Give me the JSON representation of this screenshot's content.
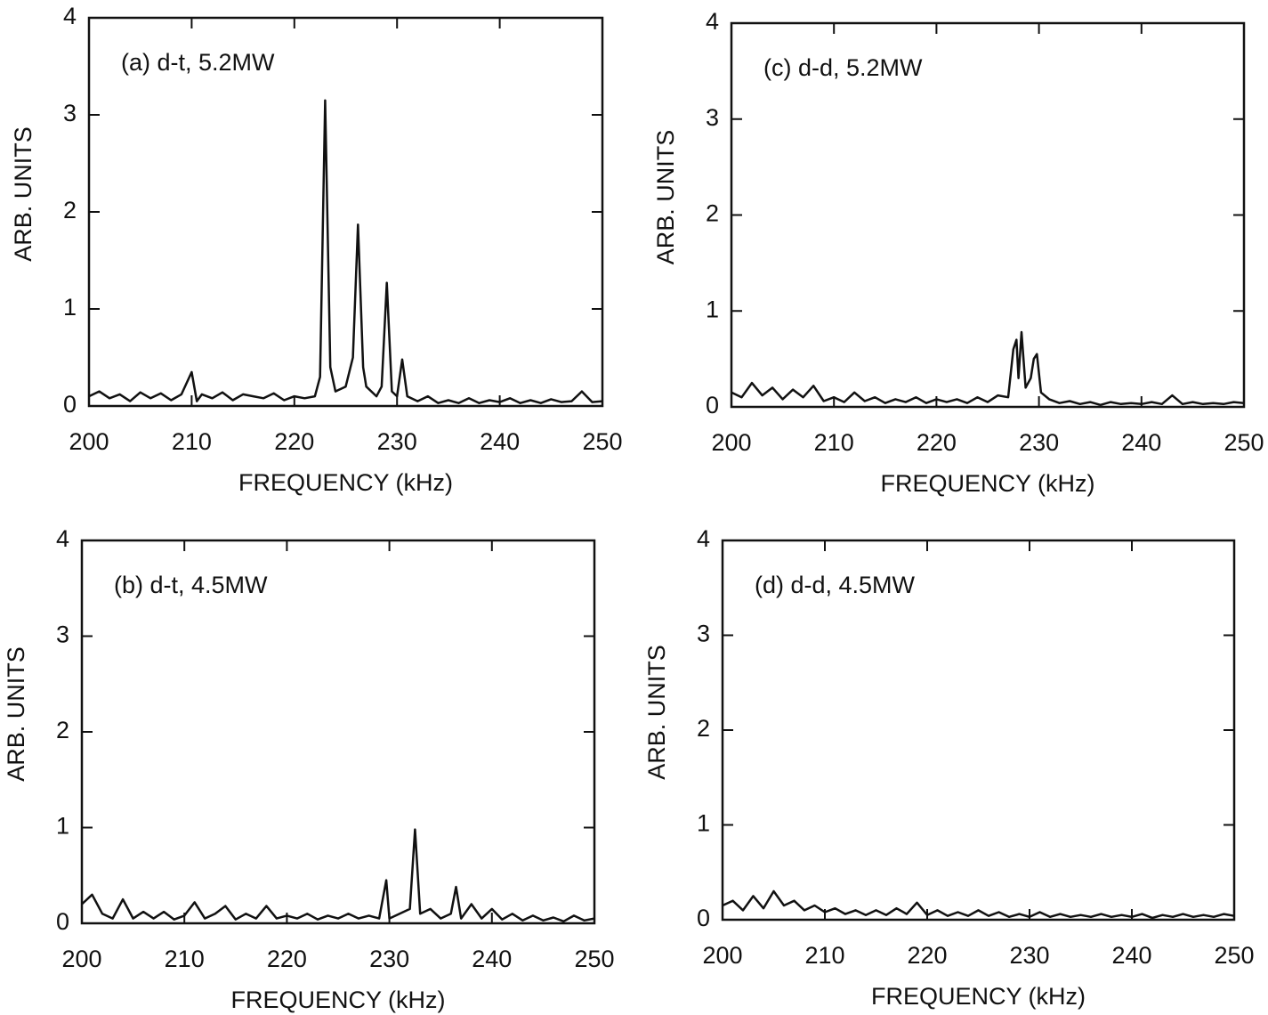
{
  "chart_data": [
    {
      "type": "line",
      "title": "(a) d-t, 5.2MW",
      "x_label": "FREQUENCY (kHz)",
      "y_label": "ARB. UNITS",
      "color": "#111111",
      "xlim": [
        200,
        250
      ],
      "ylim": [
        0,
        4
      ],
      "xticks": [
        200,
        210,
        220,
        230,
        240,
        250
      ],
      "yticks": [
        0,
        1,
        2,
        3,
        4
      ],
      "x": [
        200,
        201,
        202,
        203,
        204,
        205,
        206,
        207,
        208,
        209,
        210,
        210.5,
        211,
        212,
        213,
        214,
        215,
        216,
        217,
        218,
        219,
        220,
        221,
        222,
        222.5,
        223,
        223.5,
        224,
        225,
        225.7,
        226.2,
        226.7,
        227,
        228,
        228.5,
        229,
        229.5,
        230,
        230.5,
        231,
        232,
        233,
        234,
        235,
        236,
        237,
        238,
        239,
        240,
        241,
        242,
        243,
        244,
        245,
        246,
        247,
        248,
        249,
        250
      ],
      "values": [
        0.1,
        0.15,
        0.08,
        0.12,
        0.05,
        0.14,
        0.08,
        0.13,
        0.06,
        0.12,
        0.35,
        0.05,
        0.12,
        0.08,
        0.14,
        0.06,
        0.12,
        0.1,
        0.08,
        0.13,
        0.06,
        0.1,
        0.08,
        0.1,
        0.3,
        3.15,
        0.4,
        0.15,
        0.2,
        0.5,
        1.87,
        0.4,
        0.2,
        0.1,
        0.2,
        1.27,
        0.15,
        0.1,
        0.48,
        0.1,
        0.05,
        0.1,
        0.03,
        0.06,
        0.03,
        0.08,
        0.03,
        0.06,
        0.04,
        0.08,
        0.03,
        0.06,
        0.03,
        0.07,
        0.04,
        0.05,
        0.15,
        0.04,
        0.05
      ]
    },
    {
      "type": "line",
      "title": "(b) d-t, 4.5MW",
      "x_label": "FREQUENCY (kHz)",
      "y_label": "ARB. UNITS",
      "color": "#111111",
      "xlim": [
        200,
        250
      ],
      "ylim": [
        0,
        4
      ],
      "xticks": [
        200,
        210,
        220,
        230,
        240,
        250
      ],
      "yticks": [
        0,
        1,
        2,
        3,
        4
      ],
      "x": [
        200,
        201,
        202,
        203,
        204,
        205,
        206,
        207,
        208,
        209,
        210,
        211,
        212,
        213,
        214,
        215,
        216,
        217,
        218,
        219,
        220,
        221,
        222,
        223,
        224,
        225,
        226,
        227,
        228,
        229,
        229.7,
        230,
        231,
        232,
        232.5,
        233,
        234,
        235,
        236,
        236.5,
        237,
        238,
        239,
        240,
        241,
        242,
        243,
        244,
        245,
        246,
        247,
        248,
        249,
        250
      ],
      "values": [
        0.2,
        0.3,
        0.1,
        0.05,
        0.25,
        0.05,
        0.12,
        0.05,
        0.12,
        0.04,
        0.08,
        0.22,
        0.05,
        0.1,
        0.18,
        0.04,
        0.1,
        0.05,
        0.18,
        0.05,
        0.08,
        0.05,
        0.1,
        0.04,
        0.08,
        0.05,
        0.1,
        0.05,
        0.08,
        0.05,
        0.45,
        0.05,
        0.1,
        0.15,
        0.98,
        0.1,
        0.15,
        0.05,
        0.1,
        0.38,
        0.05,
        0.2,
        0.05,
        0.15,
        0.04,
        0.1,
        0.03,
        0.08,
        0.03,
        0.06,
        0.02,
        0.08,
        0.03,
        0.05
      ]
    },
    {
      "type": "line",
      "title": "(c) d-d, 5.2MW",
      "x_label": "FREQUENCY (kHz)",
      "y_label": "ARB. UNITS",
      "color": "#111111",
      "xlim": [
        200,
        250
      ],
      "ylim": [
        0,
        4
      ],
      "xticks": [
        200,
        210,
        220,
        230,
        240,
        250
      ],
      "yticks": [
        0,
        1,
        2,
        3,
        4
      ],
      "x": [
        200,
        201,
        202,
        203,
        204,
        205,
        206,
        207,
        208,
        209,
        210,
        211,
        212,
        213,
        214,
        215,
        216,
        217,
        218,
        219,
        220,
        221,
        222,
        223,
        224,
        225,
        226,
        227,
        227.5,
        227.8,
        228,
        228.3,
        228.7,
        229.2,
        229.5,
        229.8,
        230.2,
        231,
        232,
        233,
        234,
        235,
        236,
        237,
        238,
        239,
        240,
        241,
        242,
        243,
        244,
        245,
        246,
        247,
        248,
        249,
        250
      ],
      "values": [
        0.15,
        0.1,
        0.25,
        0.12,
        0.2,
        0.08,
        0.18,
        0.1,
        0.22,
        0.06,
        0.1,
        0.05,
        0.15,
        0.06,
        0.1,
        0.04,
        0.08,
        0.05,
        0.1,
        0.04,
        0.08,
        0.05,
        0.08,
        0.04,
        0.1,
        0.05,
        0.12,
        0.1,
        0.6,
        0.7,
        0.3,
        0.78,
        0.2,
        0.3,
        0.5,
        0.55,
        0.15,
        0.08,
        0.04,
        0.06,
        0.03,
        0.05,
        0.02,
        0.05,
        0.03,
        0.04,
        0.03,
        0.05,
        0.03,
        0.12,
        0.03,
        0.05,
        0.03,
        0.04,
        0.03,
        0.05,
        0.04
      ]
    },
    {
      "type": "line",
      "title": "(d) d-d, 4.5MW",
      "x_label": "FREQUENCY (kHz)",
      "y_label": "ARB. UNITS",
      "color": "#111111",
      "xlim": [
        200,
        250
      ],
      "ylim": [
        0,
        4
      ],
      "xticks": [
        200,
        210,
        220,
        230,
        240,
        250
      ],
      "yticks": [
        0,
        1,
        2,
        3,
        4
      ],
      "x": [
        200,
        201,
        202,
        203,
        204,
        205,
        206,
        207,
        208,
        209,
        210,
        211,
        212,
        213,
        214,
        215,
        216,
        217,
        218,
        219,
        220,
        221,
        222,
        223,
        224,
        225,
        226,
        227,
        228,
        229,
        230,
        231,
        232,
        233,
        234,
        235,
        236,
        237,
        238,
        239,
        240,
        241,
        242,
        243,
        244,
        245,
        246,
        247,
        248,
        249,
        250
      ],
      "values": [
        0.15,
        0.2,
        0.1,
        0.25,
        0.12,
        0.3,
        0.15,
        0.2,
        0.1,
        0.15,
        0.08,
        0.12,
        0.06,
        0.1,
        0.05,
        0.1,
        0.05,
        0.12,
        0.06,
        0.18,
        0.05,
        0.1,
        0.04,
        0.08,
        0.04,
        0.1,
        0.04,
        0.08,
        0.03,
        0.06,
        0.03,
        0.08,
        0.03,
        0.06,
        0.03,
        0.05,
        0.03,
        0.06,
        0.03,
        0.05,
        0.03,
        0.06,
        0.02,
        0.05,
        0.03,
        0.06,
        0.03,
        0.05,
        0.03,
        0.06,
        0.04
      ]
    }
  ]
}
